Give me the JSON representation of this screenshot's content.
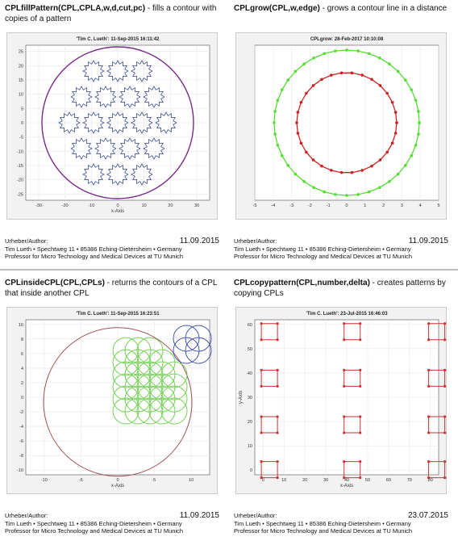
{
  "panels": [
    {
      "title_bold": "CPLfillPattern(CPL,CPLA,w,d,cut,pc)",
      "title_rest": " - fills a contour with copies of a pattern",
      "plot": {
        "title": "'Tim C. Lueth': 11-Sep-2015 16:11:42",
        "xlabel": "x-Axis",
        "xticks": [
          "-30",
          "-20",
          "-10",
          "0",
          "10",
          "20",
          "30"
        ],
        "yticks": [
          "25",
          "20",
          "15",
          "10",
          "5",
          "0",
          "-5",
          "-10",
          "-15",
          "-20",
          "-25"
        ]
      },
      "footer": {
        "label": "Urheber/Author:",
        "date": "11.09.2015",
        "address": "Tim Lueth • Spechtweg 11 • 85386 Eching-Dietersheim • Germany",
        "affiliation": "Professor for Micro Technology and Medical Devices at TU Munich"
      }
    },
    {
      "title_bold": "CPLgrow(CPL,w,edge)",
      "title_rest": " - grows a contour line in a distance",
      "plot": {
        "title": "CPLgrow: 28-Feb-2017 10:10:08",
        "xticks": [
          "-5",
          "-4",
          "-3",
          "-2",
          "-1",
          "0",
          "1",
          "2",
          "3",
          "4",
          "5"
        ]
      },
      "footer": {
        "label": "Urheber/Author:",
        "date": "11.09.2015",
        "address": "Tim Lueth • Spechtweg 11 • 85386 Eching-Dietersheim • Germany",
        "affiliation": "Professor for Micro Technology and Medical Devices at TU Munich"
      }
    },
    {
      "title_bold": "CPLinsideCPL(CPL,CPLs)",
      "title_rest": " - returns the contours of a CPL that inside another CPL",
      "plot": {
        "title": "'Tim C. Lueth': 11-Sep-2015 16:23:51",
        "xlabel": "x-Axis",
        "xticks": [
          "-10",
          "-5",
          "0",
          "5",
          "10"
        ],
        "yticks": [
          "10",
          "8",
          "6",
          "4",
          "2",
          "0",
          "-2",
          "-4",
          "-6",
          "-8",
          "-10"
        ]
      },
      "footer": {
        "label": "Urheber/Author:",
        "date": "11.09.2015",
        "address": "Tim Lueth • Spechtweg 11 • 85386 Eching-Dietersheim • Germany",
        "affiliation": "Professor for Micro Technology and Medical Devices at TU Munich"
      }
    },
    {
      "title_bold": "CPLcopypattern(CPL,number,delta)",
      "title_rest": " - creates patterns by copying CPLs",
      "plot": {
        "title": "'Tim C. Lueth': 23-Jul-2015 16:46:03",
        "xlabel": "x-Axis",
        "ylabel": "y-Axis",
        "xticks": [
          "0",
          "10",
          "20",
          "30",
          "40",
          "50",
          "60",
          "70",
          "80"
        ],
        "yticks": [
          "60",
          "50",
          "40",
          "30",
          "20",
          "10",
          "0"
        ]
      },
      "footer": {
        "label": "Urheber/Author:",
        "date": "23.07.2015",
        "address": "Tim Lueth • Spechtweg 11 • 85386 Eching-Dietersheim • Germany",
        "affiliation": "Professor for Micro Technology and Medical Devices at TU Munich"
      }
    }
  ]
}
